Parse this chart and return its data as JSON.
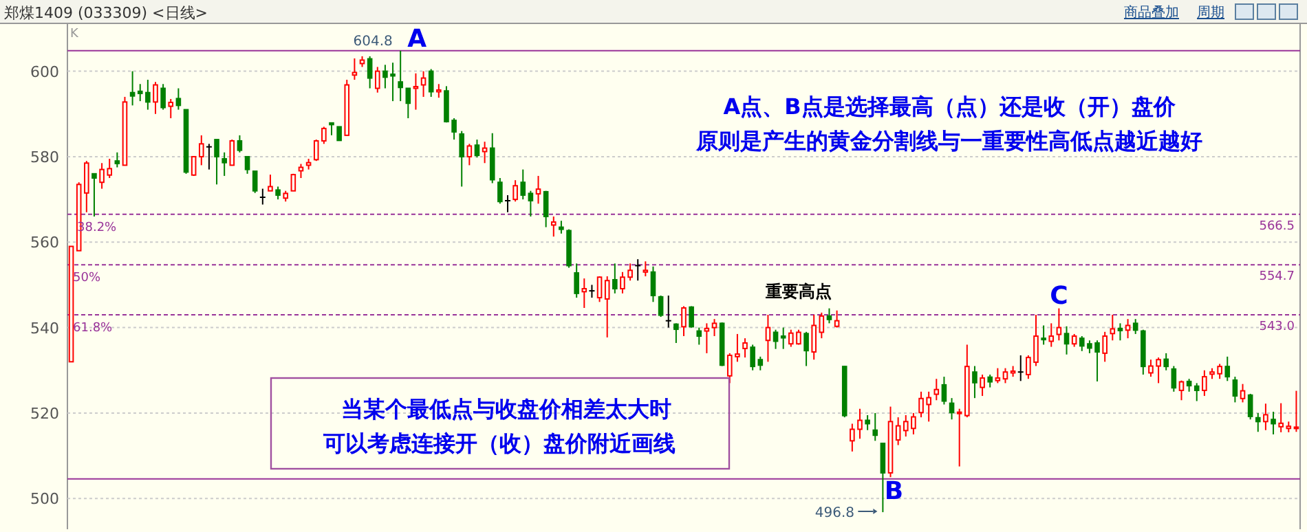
{
  "chart_data": {
    "type": "candlestick",
    "title": "郑煤1409 (033309) <日线>",
    "categories": [
      null,
      null,
      null,
      null,
      null,
      null,
      null,
      null,
      null,
      null,
      null,
      null,
      null,
      null,
      null,
      null,
      null,
      null,
      null,
      null,
      null,
      null,
      null,
      null,
      null,
      null,
      null,
      null,
      null,
      null,
      null,
      null,
      null,
      null,
      null,
      null,
      null,
      null,
      null,
      null,
      null,
      null,
      null,
      null,
      null,
      null,
      null,
      null,
      null,
      null,
      null,
      null,
      null,
      null,
      null,
      null,
      null,
      null,
      null,
      null,
      null,
      null,
      null,
      null,
      null,
      null,
      null,
      null,
      null,
      null,
      null,
      null,
      null,
      null,
      null,
      null,
      null,
      null,
      null,
      null,
      null,
      null,
      null,
      null,
      null,
      null,
      null,
      null,
      null,
      null,
      null,
      null,
      null,
      null,
      null,
      null,
      null,
      null,
      null,
      null,
      null,
      null,
      null,
      null,
      null,
      null,
      null,
      null,
      null,
      null,
      null,
      null,
      null,
      null,
      null,
      null,
      null,
      null,
      null,
      null,
      null,
      null,
      null,
      null,
      null,
      null,
      null,
      null,
      null,
      null,
      null,
      null,
      null,
      null,
      null,
      null,
      null,
      null,
      null,
      null,
      null,
      null,
      null,
      null,
      null,
      null,
      null,
      null,
      null,
      null,
      null,
      null,
      null,
      null,
      null,
      null,
      null,
      null,
      null,
      null,
      null
    ],
    "ohlc": [
      [
        532,
        559,
        532,
        559
      ],
      [
        558,
        574,
        558,
        573.5
      ],
      [
        571.5,
        579,
        567,
        578.5
      ],
      [
        576,
        576,
        566,
        575
      ],
      [
        574,
        578.5,
        572.5,
        577
      ],
      [
        575.7,
        579.5,
        575,
        577.2
      ],
      [
        579,
        581,
        577.5,
        578.4
      ],
      [
        578,
        594,
        578,
        592.8
      ],
      [
        595,
        600,
        592,
        594.2
      ],
      [
        595.3,
        597,
        593,
        594.8
      ],
      [
        595,
        598,
        591,
        592.8
      ],
      [
        592.8,
        597.5,
        590,
        596.8
      ],
      [
        596,
        597,
        591,
        591.5
      ],
      [
        591.8,
        593.5,
        589,
        592.7
      ],
      [
        593.6,
        596,
        591,
        592
      ],
      [
        591,
        591,
        576,
        576.4
      ],
      [
        575.7,
        580,
        575.5,
        580
      ],
      [
        580,
        585,
        578,
        583
      ],
      [
        582.3,
        583,
        577,
        582.3
      ],
      [
        584,
        584,
        573.5,
        580
      ],
      [
        579.5,
        581,
        575.5,
        578.6
      ],
      [
        578,
        584,
        578,
        583.7
      ],
      [
        583.7,
        585,
        581,
        581.5
      ],
      [
        580,
        580,
        576,
        577
      ],
      [
        576.6,
        576.6,
        571.5,
        572
      ],
      [
        570.5,
        572.5,
        568.8,
        570.5
      ],
      [
        572,
        575.8,
        572,
        573
      ],
      [
        572.2,
        573,
        570,
        571
      ],
      [
        570.3,
        572,
        569.5,
        571.4
      ],
      [
        572,
        576,
        572,
        575.8
      ],
      [
        576.7,
        578.3,
        575,
        577.5
      ],
      [
        578,
        579.5,
        577,
        578.6
      ],
      [
        579.3,
        584,
        579,
        583.7
      ],
      [
        583.7,
        587,
        583,
        586.6
      ],
      [
        587.9,
        588,
        585,
        587.5
      ],
      [
        587,
        587,
        583.8,
        583.8
      ],
      [
        585,
        598,
        585,
        596.8
      ],
      [
        599.1,
        603,
        598,
        599.7
      ],
      [
        601.8,
        603.5,
        601,
        602.6
      ],
      [
        602.9,
        603.5,
        596,
        598.4
      ],
      [
        596,
        601,
        595,
        600
      ],
      [
        600,
        601.5,
        596,
        598.6
      ],
      [
        599.3,
        602,
        593,
        598.9
      ],
      [
        597.5,
        604.8,
        593,
        596.2
      ],
      [
        596,
        596,
        589,
        592.5
      ],
      [
        596,
        599.5,
        591,
        596.4
      ],
      [
        596.8,
        600,
        594,
        598.4
      ],
      [
        600,
        600.5,
        594,
        595.2
      ],
      [
        595.2,
        597,
        593.8,
        595.6
      ],
      [
        595.4,
        596.5,
        588,
        588.2
      ],
      [
        588.5,
        589,
        584,
        585.8
      ],
      [
        585.3,
        586,
        573,
        580
      ],
      [
        580,
        583,
        578,
        582.5
      ],
      [
        582.7,
        584,
        579.8,
        580.3
      ],
      [
        581.2,
        583.5,
        578.5,
        582
      ],
      [
        582,
        585.5,
        573.8,
        574.6
      ],
      [
        574,
        575,
        569,
        569.5
      ],
      [
        569.7,
        571,
        567,
        569.7
      ],
      [
        570,
        574.5,
        569.5,
        573.2
      ],
      [
        574,
        577,
        570,
        571
      ],
      [
        571.4,
        572,
        566,
        569.7
      ],
      [
        571.3,
        575.5,
        569,
        572.4
      ],
      [
        571.8,
        572,
        563.5,
        566
      ],
      [
        564,
        566,
        561.3,
        564.7
      ],
      [
        563.5,
        565,
        562,
        563
      ],
      [
        562.7,
        563,
        554,
        554.5
      ],
      [
        552.8,
        555,
        547,
        548
      ],
      [
        548.4,
        551.5,
        544.6,
        549.1
      ],
      [
        548.6,
        550,
        547,
        548.6
      ],
      [
        547,
        552,
        546,
        551.8
      ],
      [
        546.7,
        552,
        537.7,
        551
      ],
      [
        551.2,
        555,
        548,
        549.1
      ],
      [
        549.1,
        553,
        548,
        551.8
      ],
      [
        551.8,
        555,
        551,
        553.4
      ],
      [
        554.5,
        556,
        551,
        554.5
      ],
      [
        553,
        555.5,
        552,
        553.4
      ],
      [
        553,
        554.3,
        546,
        547.5
      ],
      [
        547.2,
        547.5,
        542.5,
        542.9
      ],
      [
        541.6,
        547.5,
        540,
        541.6
      ],
      [
        540.8,
        541,
        536.4,
        539.6
      ],
      [
        540.2,
        545,
        538,
        544.6
      ],
      [
        544.8,
        545,
        540,
        540.2
      ],
      [
        539.2,
        540,
        536,
        538
      ],
      [
        539.2,
        541,
        534,
        539.8
      ],
      [
        540,
        542,
        538,
        541
      ],
      [
        541,
        541.2,
        531,
        531.2
      ],
      [
        528.7,
        534,
        527,
        533.5
      ],
      [
        533.2,
        538.5,
        532,
        533.8
      ],
      [
        535.1,
        537.5,
        533,
        536.4
      ],
      [
        535.4,
        536,
        530,
        530.9
      ],
      [
        532.5,
        533.2,
        530,
        531.2
      ],
      [
        537,
        543,
        532,
        540
      ],
      [
        538.9,
        539.5,
        535,
        536.8
      ],
      [
        538,
        540,
        535,
        537.6
      ],
      [
        536.2,
        539.5,
        535.5,
        538.7
      ],
      [
        536.2,
        539.5,
        536,
        538.9
      ],
      [
        538.6,
        539,
        531,
        534.6
      ],
      [
        534.3,
        543,
        532.5,
        540.5
      ],
      [
        538.9,
        543.5,
        537.5,
        542.7
      ],
      [
        542.7,
        544.5,
        541,
        541.9
      ],
      [
        540.3,
        544,
        540,
        541.6
      ],
      [
        530.9,
        531,
        519,
        519.4
      ],
      [
        513.5,
        517.5,
        511,
        516.2
      ],
      [
        516.2,
        521,
        514,
        518.3
      ],
      [
        518.3,
        519.5,
        516,
        517.5
      ],
      [
        516,
        520,
        513.5,
        514.8
      ],
      [
        512.9,
        513,
        496.8,
        506
      ],
      [
        506,
        521.5,
        505,
        518
      ],
      [
        513.7,
        519,
        512.5,
        517
      ],
      [
        515.9,
        519.5,
        514.5,
        518
      ],
      [
        516.4,
        520,
        515,
        519.1
      ],
      [
        520.1,
        525,
        519,
        523.4
      ],
      [
        522,
        525,
        518,
        523.6
      ],
      [
        524.4,
        528,
        523,
        525.5
      ],
      [
        526.6,
        528.5,
        522,
        522.8
      ],
      [
        522.3,
        523.5,
        518.5,
        520.1
      ],
      [
        520,
        521,
        507.5,
        520.2
      ],
      [
        519.4,
        536,
        519,
        530.9
      ],
      [
        529.6,
        531,
        523.5,
        527.1
      ],
      [
        526,
        529,
        524,
        528.2
      ],
      [
        528.4,
        529,
        526,
        527.3
      ],
      [
        527.6,
        530.5,
        527,
        528.2
      ],
      [
        528,
        530.5,
        527,
        529.6
      ],
      [
        529.4,
        531,
        528.5,
        529.8
      ],
      [
        529.6,
        533.5,
        527.5,
        529.6
      ],
      [
        529,
        533.5,
        528,
        533
      ],
      [
        531.9,
        543,
        531,
        538
      ],
      [
        537.5,
        540.5,
        536,
        537.3
      ],
      [
        536.8,
        541,
        535.5,
        538
      ],
      [
        538.4,
        544.5,
        537,
        540
      ],
      [
        538.6,
        540.3,
        533.7,
        536.2
      ],
      [
        536.2,
        538.5,
        535.5,
        538
      ],
      [
        537.5,
        538,
        534.5,
        535.7
      ],
      [
        536.2,
        537,
        534,
        535.2
      ],
      [
        536.4,
        537,
        527.4,
        534.3
      ],
      [
        534,
        539,
        532,
        538
      ],
      [
        538.6,
        543,
        537,
        539.7
      ],
      [
        539.8,
        541,
        537,
        539.3
      ],
      [
        539.4,
        542,
        537.5,
        540.5
      ],
      [
        541,
        542,
        538.5,
        539.4
      ],
      [
        539.2,
        539.5,
        529,
        530.9
      ],
      [
        529.4,
        532.5,
        528.5,
        531
      ],
      [
        531,
        533,
        527,
        532.5
      ],
      [
        532.6,
        534,
        530,
        530.9
      ],
      [
        530.3,
        531,
        525,
        525.9
      ],
      [
        525.3,
        527.6,
        523,
        527.3
      ],
      [
        527.4,
        528,
        525,
        526.4
      ],
      [
        526.3,
        527,
        522.8,
        525.3
      ],
      [
        525.3,
        530,
        524,
        528.5
      ],
      [
        529.1,
        530.5,
        528,
        529.6
      ],
      [
        529.2,
        531.5,
        528,
        530.9
      ],
      [
        530.9,
        533.2,
        527.5,
        528.5
      ],
      [
        527.7,
        528.5,
        522.5,
        524
      ],
      [
        523.4,
        526.8,
        522.5,
        525.2
      ],
      [
        524.2,
        524.5,
        518.5,
        519.2
      ],
      [
        518.9,
        520,
        515.6,
        518
      ],
      [
        518,
        522.2,
        516,
        519.6
      ],
      [
        518.5,
        520.3,
        515,
        517.5
      ],
      [
        516.8,
        522.3,
        515.5,
        517.6
      ],
      [
        516.4,
        518,
        515.5,
        516.9
      ],
      [
        516.6,
        525.2,
        515.6,
        516.7
      ]
    ],
    "ylim": [
      492.8,
      611.2
    ],
    "yticks": [
      500,
      520,
      540,
      560,
      580,
      600
    ],
    "grid": "y",
    "ref_lines": [
      {
        "axis": "y",
        "value": 604.8,
        "color": "#993399",
        "line_style": "solid"
      },
      {
        "axis": "y",
        "value": 566.5,
        "label": "566.5",
        "color": "#993399",
        "line_style": "dashed"
      },
      {
        "axis": "y",
        "value": 554.7,
        "label": "554.7",
        "color": "#993399",
        "line_style": "dashed"
      },
      {
        "axis": "y",
        "value": 543.0,
        "label": "543.0",
        "color": "#993399",
        "line_style": "dashed"
      },
      {
        "axis": "y",
        "value": 504.6,
        "color": "#993399",
        "line_style": "solid"
      }
    ],
    "annotations": [
      "K",
      "商品叠加",
      "周期",
      "604.8",
      "496.8",
      "A",
      "B",
      "C",
      "重要高点",
      "A点、B点是选择最高（点）还是收（开）盘价",
      "原则是产生的黄金分割线与一重要性高低点越近越好",
      "38.2%",
      "50%",
      "61.8%",
      "当某个最低点与收盘价相差太大时",
      "可以考虑连接开（收）盘价附近画线"
    ]
  }
}
